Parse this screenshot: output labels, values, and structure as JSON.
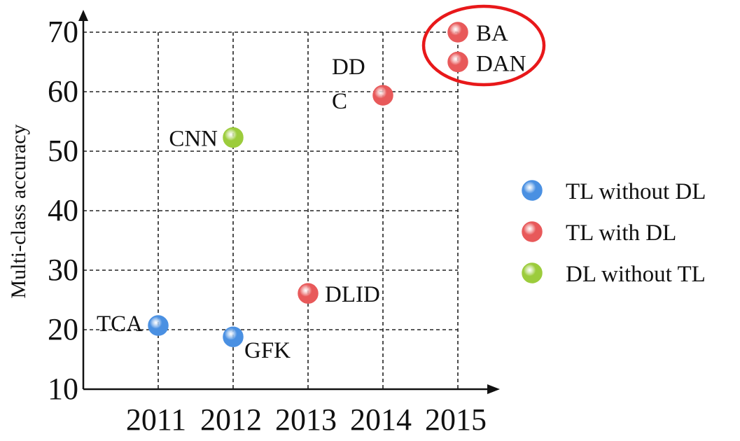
{
  "chart_data": {
    "type": "scatter",
    "xlabel": "",
    "ylabel": "Multi-class accuracy",
    "xticks": [
      2011,
      2012,
      2013,
      2014,
      2015
    ],
    "yticks": [
      10,
      20,
      30,
      40,
      50,
      60,
      70
    ],
    "xlim": [
      2010,
      2015
    ],
    "ylim": [
      10,
      70
    ],
    "grid": true,
    "legend_position": "right",
    "series": [
      {
        "name": "TL without DL",
        "color": "#4a90e2",
        "points": [
          {
            "label": "TCA",
            "x": 2011,
            "y": 20.7
          },
          {
            "label": "GFK",
            "x": 2012,
            "y": 18.8
          }
        ]
      },
      {
        "name": "TL with DL",
        "color": "#e8595a",
        "points": [
          {
            "label": "DLID",
            "x": 2013,
            "y": 26.1
          },
          {
            "label": "DDC",
            "label_lines": [
              "DD",
              "C"
            ],
            "x": 2014,
            "y": 59.4
          },
          {
            "label": "BA",
            "x": 2015,
            "y": 70.0
          },
          {
            "label": "DAN",
            "x": 2015,
            "y": 65.0
          }
        ]
      },
      {
        "name": "DL without TL",
        "color": "#9ccc3c",
        "points": [
          {
            "label": "CNN",
            "x": 2012,
            "y": 52.3
          }
        ]
      }
    ],
    "annotation": {
      "shape": "ellipse",
      "color": "#e8181a",
      "encloses": [
        "BA",
        "DAN"
      ]
    }
  }
}
